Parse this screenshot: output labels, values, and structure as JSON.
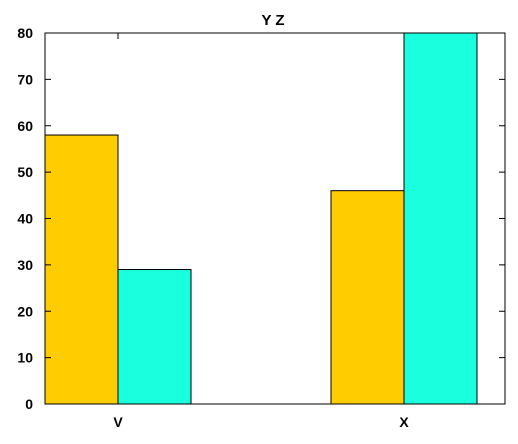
{
  "chart_data": {
    "type": "bar",
    "title": "Y Z",
    "xlabel": "",
    "ylabel": "",
    "categories": [
      "V",
      "X"
    ],
    "series": [
      {
        "color": "#ffcc00",
        "values": [
          58,
          46
        ]
      },
      {
        "color": "#1affdd",
        "values": [
          29,
          80
        ]
      }
    ],
    "ylim": [
      0,
      80
    ],
    "yticks": [
      0,
      10,
      20,
      30,
      40,
      50,
      60,
      70,
      80
    ],
    "grid": false,
    "legend": "none"
  }
}
